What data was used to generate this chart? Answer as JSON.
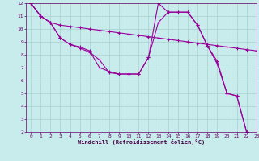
{
  "line1": {
    "x": [
      0,
      1,
      2,
      3,
      4,
      5,
      6,
      7,
      8,
      9,
      10,
      11,
      12,
      13,
      14,
      15,
      16,
      17,
      18,
      19,
      20,
      21,
      22,
      23
    ],
    "y": [
      12,
      11,
      10.5,
      10.3,
      10.2,
      10.1,
      10.0,
      9.9,
      9.8,
      9.7,
      9.6,
      9.5,
      9.4,
      9.3,
      9.2,
      9.1,
      9.0,
      8.9,
      8.8,
      8.7,
      8.6,
      8.5,
      8.4,
      8.3
    ]
  },
  "line2": {
    "x": [
      0,
      1,
      2,
      3,
      4,
      5,
      6,
      7,
      8,
      9,
      10,
      11,
      12,
      13,
      14,
      15,
      16,
      17,
      18,
      19,
      20,
      21,
      22,
      23
    ],
    "y": [
      12,
      11,
      10.5,
      9.3,
      8.8,
      8.5,
      8.2,
      7.6,
      6.6,
      6.5,
      6.5,
      6.5,
      7.8,
      10.5,
      11.3,
      11.3,
      11.3,
      10.3,
      8.7,
      7.5,
      5.0,
      4.8,
      2.0,
      null
    ]
  },
  "line3": {
    "x": [
      0,
      1,
      2,
      3,
      4,
      5,
      6,
      7,
      8,
      9,
      10,
      11,
      12,
      13,
      14,
      15,
      16,
      17,
      18,
      19,
      20,
      21,
      22,
      23
    ],
    "y": [
      12,
      11,
      10.5,
      9.3,
      8.8,
      8.6,
      8.3,
      7.0,
      6.7,
      6.5,
      6.5,
      6.5,
      7.8,
      12.0,
      11.3,
      11.3,
      11.3,
      10.3,
      8.7,
      7.3,
      5.0,
      4.8,
      2.0,
      null
    ]
  },
  "color": "#990099",
  "bg_color": "#c8ecec",
  "grid_color": "#a8cece",
  "xlabel": "Windchill (Refroidissement éolien,°C)",
  "xlim": [
    -0.5,
    23
  ],
  "ylim": [
    2,
    12
  ],
  "xticks": [
    0,
    1,
    2,
    3,
    4,
    5,
    6,
    7,
    8,
    9,
    10,
    11,
    12,
    13,
    14,
    15,
    16,
    17,
    18,
    19,
    20,
    21,
    22,
    23
  ],
  "yticks": [
    2,
    3,
    4,
    5,
    6,
    7,
    8,
    9,
    10,
    11,
    12
  ]
}
